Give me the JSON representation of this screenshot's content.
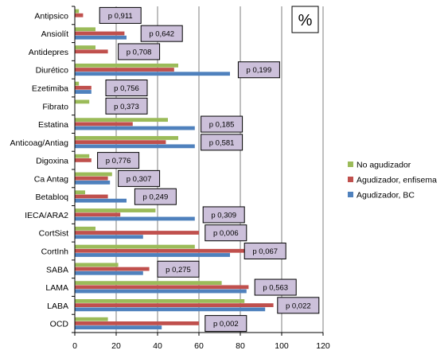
{
  "chart_data": {
    "type": "bar",
    "orientation": "horizontal",
    "unit_label": "%",
    "xlim": [
      0,
      120
    ],
    "x_ticks": [
      "0",
      "20",
      "40",
      "60",
      "80",
      "100",
      "120"
    ],
    "grid": "vertical-major",
    "legend_position": "right",
    "categories": [
      "Antipsico",
      "Ansiolít",
      "Antidepres",
      "Diurético",
      "Ezetimiba",
      "Fibrato",
      "Estatina",
      "Anticoag/Antiag",
      "Digoxina",
      "Ca Antag",
      "Betabloq",
      "IECA/ARA2",
      "CortSist",
      "CortInh",
      "SABA",
      "LAMA",
      "LABA",
      "OCD"
    ],
    "series": [
      {
        "name": "No agudizador",
        "color": "#9BBB59",
        "values": [
          2,
          10,
          10,
          50,
          2,
          7,
          45,
          50,
          7,
          18,
          5,
          39,
          10,
          58,
          21,
          71,
          82,
          16
        ]
      },
      {
        "name": "Agudizador, enfisema",
        "color": "#C0504D",
        "values": [
          4,
          24,
          16,
          48,
          8,
          0,
          28,
          44,
          8,
          16,
          16,
          22,
          60,
          84,
          36,
          84,
          96,
          60
        ]
      },
      {
        "name": "Agudizador, BC",
        "color": "#4F81BD",
        "values": [
          0,
          25,
          0,
          75,
          8,
          0,
          58,
          58,
          0,
          17,
          25,
          58,
          33,
          75,
          33,
          83,
          92,
          42
        ]
      }
    ],
    "annotations": [
      {
        "category": "Antipsico",
        "text": "p 0,911",
        "x_value": 12
      },
      {
        "category": "Ansiolít",
        "text": "p 0,642",
        "x_value": 32
      },
      {
        "category": "Antidepres",
        "text": "p 0,708",
        "x_value": 21
      },
      {
        "category": "Diurético",
        "text": "p 0,199",
        "x_value": 79
      },
      {
        "category": "Ezetimiba",
        "text": "p 0,756",
        "x_value": 15
      },
      {
        "category": "Fibrato",
        "text": "p 0,373",
        "x_value": 15
      },
      {
        "category": "Estatina",
        "text": "p 0,185",
        "x_value": 61
      },
      {
        "category": "Anticoag/Antiag",
        "text": "p 0,581",
        "x_value": 61
      },
      {
        "category": "Digoxina",
        "text": "p 0,776",
        "x_value": 11
      },
      {
        "category": "Ca Antag",
        "text": "p 0,307",
        "x_value": 21
      },
      {
        "category": "Betabloq",
        "text": "p 0,249",
        "x_value": 29
      },
      {
        "category": "IECA/ARA2",
        "text": "p 0,309",
        "x_value": 62
      },
      {
        "category": "CortSist",
        "text": "p 0,006",
        "x_value": 63
      },
      {
        "category": "CortInh",
        "text": "p 0,067",
        "x_value": 82
      },
      {
        "category": "SABA",
        "text": "p 0,275",
        "x_value": 40
      },
      {
        "category": "LAMA",
        "text": "p 0,563",
        "x_value": 87
      },
      {
        "category": "LABA",
        "text": "p 0,022",
        "x_value": 98
      },
      {
        "category": "OCD",
        "text": "p 0,002",
        "x_value": 63
      }
    ]
  },
  "colors": {
    "annotation_fill": "#CCC0DA",
    "annotation_border": "#000000",
    "gridline": "#7F7F7F",
    "axis": "#000000"
  }
}
